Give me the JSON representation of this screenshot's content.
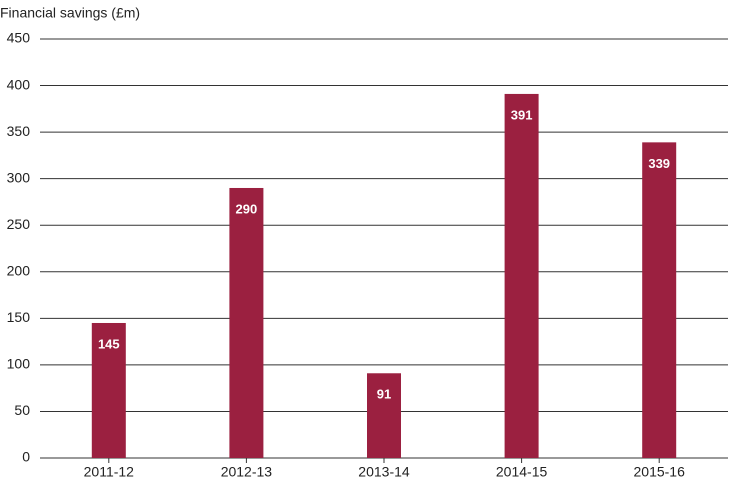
{
  "chart_data": {
    "type": "bar",
    "y_label": "Financial savings (£m)",
    "categories": [
      "2011-12",
      "2012-13",
      "2013-14",
      "2014-15",
      "2015-16"
    ],
    "values": [
      145,
      290,
      91,
      391,
      339
    ],
    "color": "#9b2040",
    "ylim": [
      0,
      450
    ],
    "yticks": [
      0,
      50,
      100,
      150,
      200,
      250,
      300,
      350,
      400,
      450
    ],
    "grid": true
  }
}
